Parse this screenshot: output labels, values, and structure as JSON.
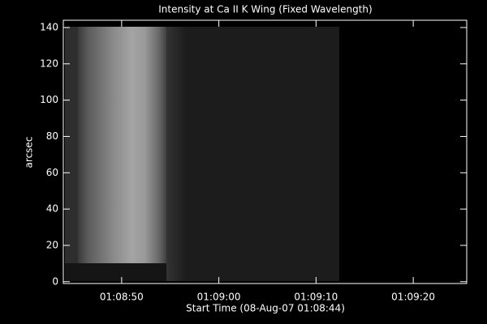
{
  "chart_data": {
    "type": "image",
    "title": "Intensity at Ca II K Wing (Fixed Wavelength)",
    "xlabel": "Start Time (08-Aug-07 01:08:44)",
    "ylabel": "arcsec",
    "xlim": [
      0,
      41.5
    ],
    "xticks": [
      {
        "value": 6,
        "label": "01:08:50"
      },
      {
        "value": 16,
        "label": "01:09:00"
      },
      {
        "value": 26,
        "label": "01:09:10"
      },
      {
        "value": 36,
        "label": "01:09:20"
      }
    ],
    "ylim": [
      -1,
      144
    ],
    "yticks": [
      0,
      20,
      40,
      60,
      80,
      100,
      120,
      140
    ]
  }
}
